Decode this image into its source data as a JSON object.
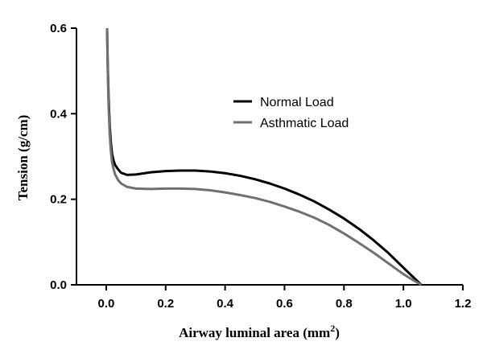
{
  "chart_data": {
    "type": "line",
    "title": "",
    "xlabel": "Airway luminal area (mm",
    "xlabel_sup": "2",
    "xlabel_close": ")",
    "ylabel": "Tension (g/cm)",
    "xlim": [
      -0.1,
      1.2
    ],
    "ylim": [
      0.0,
      0.6
    ],
    "x_ticks": [
      0.0,
      0.2,
      0.4,
      0.6,
      0.8,
      1.0,
      1.2
    ],
    "x_tick_labels": [
      "0.0",
      "0.2",
      "0.4",
      "0.6",
      "0.8",
      "1.0",
      "1.2"
    ],
    "y_ticks": [
      0.0,
      0.2,
      0.4,
      0.6
    ],
    "y_tick_labels": [
      "0.0",
      "0.2",
      "0.4",
      "0.6"
    ],
    "grid": false,
    "legend": "top-right",
    "series": [
      {
        "name": "Normal Load",
        "color": "#000000",
        "x": [
          0.003,
          0.005,
          0.008,
          0.012,
          0.016,
          0.02,
          0.025,
          0.03,
          0.04,
          0.05,
          0.07,
          0.1,
          0.15,
          0.2,
          0.25,
          0.3,
          0.35,
          0.4,
          0.45,
          0.5,
          0.55,
          0.6,
          0.65,
          0.7,
          0.75,
          0.8,
          0.85,
          0.9,
          0.95,
          1.0,
          1.03,
          1.06
        ],
        "y": [
          0.6,
          0.52,
          0.44,
          0.37,
          0.33,
          0.305,
          0.29,
          0.28,
          0.27,
          0.262,
          0.257,
          0.258,
          0.263,
          0.266,
          0.267,
          0.267,
          0.265,
          0.261,
          0.255,
          0.247,
          0.237,
          0.225,
          0.211,
          0.195,
          0.176,
          0.155,
          0.131,
          0.104,
          0.074,
          0.04,
          0.02,
          0.0
        ]
      },
      {
        "name": "Asthmatic Load",
        "color": "#707070",
        "x": [
          0.003,
          0.005,
          0.008,
          0.012,
          0.016,
          0.02,
          0.025,
          0.03,
          0.04,
          0.05,
          0.07,
          0.1,
          0.15,
          0.2,
          0.25,
          0.3,
          0.35,
          0.4,
          0.45,
          0.5,
          0.55,
          0.6,
          0.65,
          0.7,
          0.75,
          0.8,
          0.85,
          0.9,
          0.95,
          1.0,
          1.03,
          1.06
        ],
        "y": [
          0.6,
          0.51,
          0.42,
          0.35,
          0.31,
          0.285,
          0.27,
          0.258,
          0.245,
          0.237,
          0.229,
          0.225,
          0.224,
          0.225,
          0.225,
          0.224,
          0.221,
          0.216,
          0.21,
          0.203,
          0.194,
          0.183,
          0.171,
          0.157,
          0.14,
          0.12,
          0.098,
          0.075,
          0.05,
          0.025,
          0.012,
          0.0
        ]
      }
    ]
  }
}
